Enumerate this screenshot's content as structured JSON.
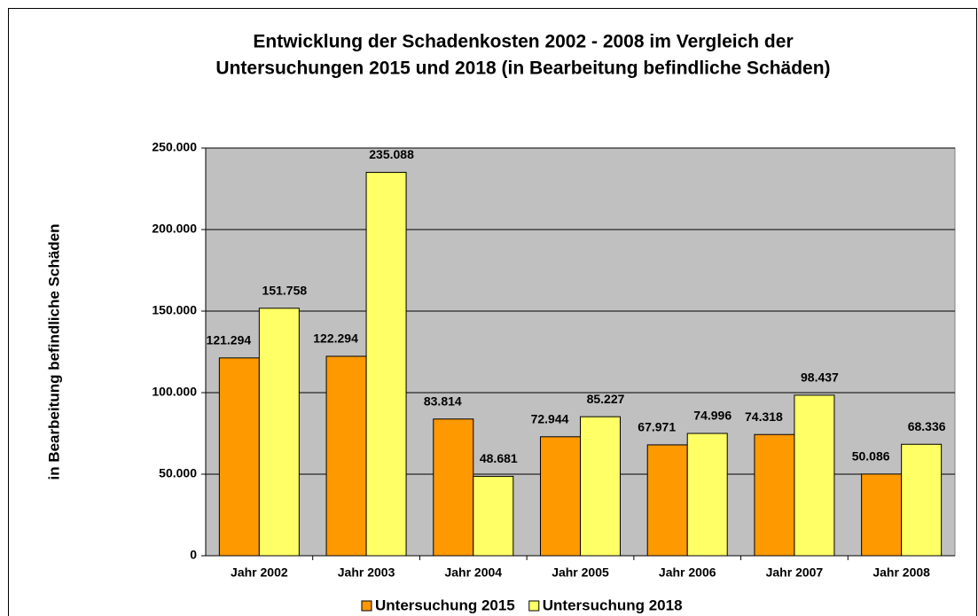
{
  "chart_data": {
    "type": "bar",
    "title": [
      "Entwicklung der Schadenkosten 2002 - 2008 im Vergleich der",
      "Untersuchungen 2015 und 2018 (in Bearbeitung befindliche Schäden)"
    ],
    "y_label": "in Bearbeitung befindliche Schäden",
    "categories": [
      "Jahr 2002",
      "Jahr 2003",
      "Jahr 2004",
      "Jahr 2005",
      "Jahr 2006",
      "Jahr 2007",
      "Jahr 2008"
    ],
    "series": [
      {
        "name": "Untersuchung 2015",
        "color": "#ff9900",
        "values": [
          121294,
          122294,
          83814,
          72944,
          67971,
          74318,
          50086
        ],
        "value_labels": [
          "121.294",
          "122.294",
          "83.814",
          "72.944",
          "67.971",
          "74.318",
          "50.086"
        ]
      },
      {
        "name": "Untersuchung 2018",
        "color": "#ffff66",
        "values": [
          151758,
          235088,
          48681,
          85227,
          74996,
          98437,
          68336
        ],
        "value_labels": [
          "151.758",
          "235.088",
          "48.681",
          "85.227",
          "74.996",
          "98.437",
          "68.336"
        ]
      }
    ],
    "ylim": [
      0,
      250000
    ],
    "yticks": [
      0,
      {
        "value": 50000,
        "label": "50.000"
      },
      {
        "value": 100000,
        "label": "100.000"
      },
      {
        "value": 150000,
        "label": "150.000"
      },
      {
        "value": 200000,
        "label": "200.000"
      },
      {
        "value": 250000,
        "label": "250.000"
      }
    ],
    "grid": true,
    "legend": "bottom"
  }
}
